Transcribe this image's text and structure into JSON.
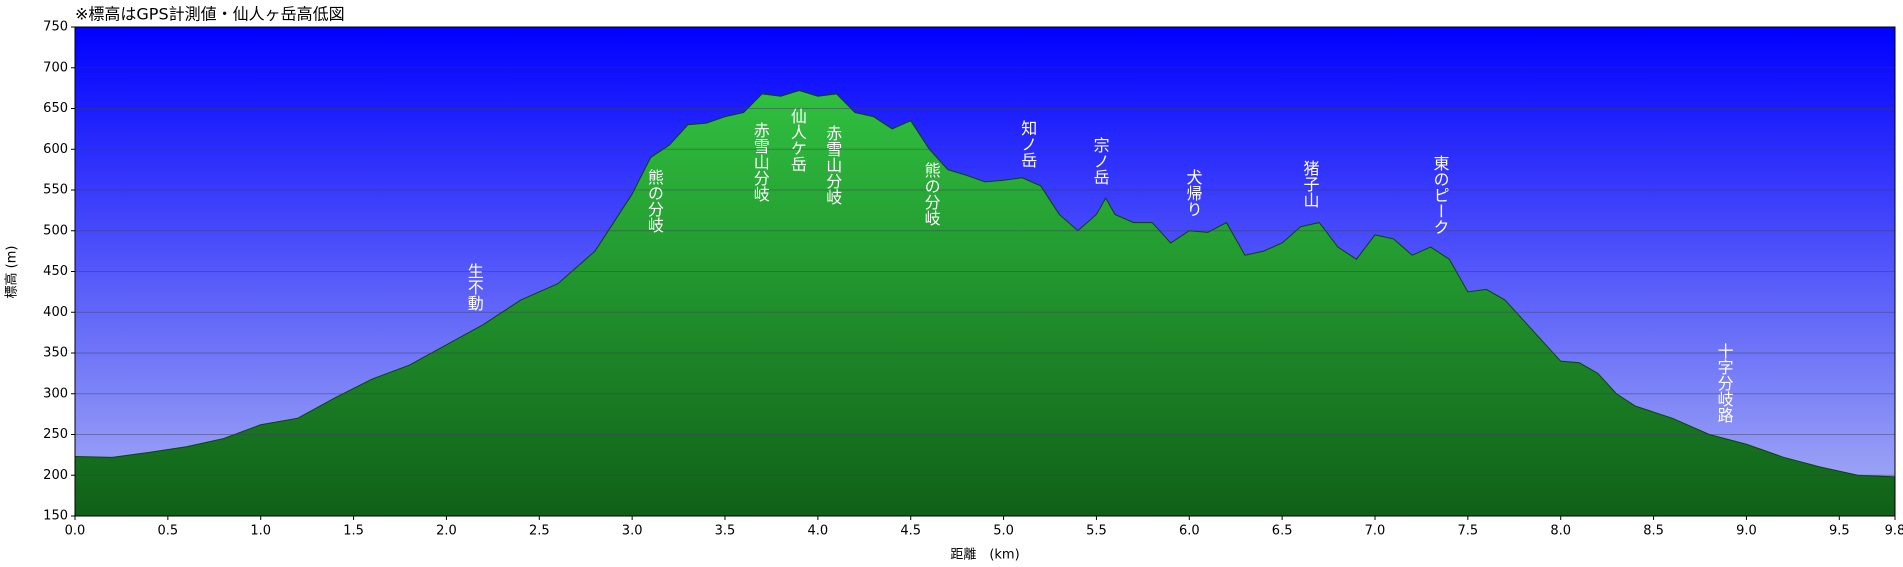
{
  "chart_data": {
    "type": "area",
    "title": "※標高はGPS計測値・仙人ヶ岳高低図",
    "x_label": "距離　(km)",
    "y_label": "標高 (m)",
    "color": "#22a030",
    "grid": true,
    "xlim": [
      0,
      9.8
    ],
    "ylim": [
      150,
      750
    ],
    "xticks": [
      {
        "value": 0,
        "label": "0.0"
      },
      0.5,
      {
        "value": 1,
        "label": "1.0"
      },
      1.5,
      {
        "value": 2,
        "label": "2.0"
      },
      2.5,
      {
        "value": 3,
        "label": "3.0"
      },
      3.5,
      {
        "value": 4,
        "label": "4.0"
      },
      4.5,
      {
        "value": 5,
        "label": "5.0"
      },
      5.5,
      {
        "value": 6,
        "label": "6.0"
      },
      6.5,
      {
        "value": 7,
        "label": "7.0"
      },
      7.5,
      {
        "value": 8,
        "label": "8.0"
      },
      8.5,
      {
        "value": 9,
        "label": "9.0"
      },
      9.5,
      9.8
    ],
    "yticks": [
      150,
      200,
      250,
      300,
      350,
      400,
      450,
      500,
      550,
      600,
      650,
      700,
      750
    ],
    "x": [
      0,
      0.2,
      0.4,
      0.6,
      0.8,
      1.0,
      1.2,
      1.4,
      1.6,
      1.8,
      2.0,
      2.2,
      2.4,
      2.6,
      2.8,
      3.0,
      3.1,
      3.2,
      3.3,
      3.4,
      3.5,
      3.6,
      3.7,
      3.8,
      3.9,
      4.0,
      4.1,
      4.2,
      4.3,
      4.4,
      4.5,
      4.6,
      4.7,
      4.8,
      4.9,
      5.0,
      5.1,
      5.2,
      5.3,
      5.4,
      5.5,
      5.55,
      5.6,
      5.7,
      5.8,
      5.9,
      6.0,
      6.1,
      6.2,
      6.3,
      6.4,
      6.5,
      6.6,
      6.7,
      6.8,
      6.9,
      7.0,
      7.1,
      7.2,
      7.3,
      7.4,
      7.5,
      7.6,
      7.7,
      7.8,
      7.9,
      8.0,
      8.1,
      8.2,
      8.3,
      8.4,
      8.6,
      8.8,
      9.0,
      9.2,
      9.4,
      9.6,
      9.8
    ],
    "values": [
      223,
      222,
      228,
      235,
      245,
      262,
      270,
      295,
      318,
      335,
      360,
      385,
      415,
      435,
      475,
      545,
      590,
      605,
      630,
      632,
      640,
      645,
      668,
      665,
      672,
      665,
      668,
      645,
      640,
      625,
      635,
      600,
      575,
      568,
      560,
      562,
      565,
      555,
      520,
      500,
      520,
      540,
      520,
      510,
      510,
      485,
      500,
      498,
      510,
      470,
      475,
      485,
      505,
      510,
      480,
      465,
      495,
      490,
      470,
      480,
      465,
      425,
      428,
      415,
      390,
      365,
      340,
      338,
      325,
      300,
      285,
      270,
      250,
      238,
      222,
      210,
      200,
      198
    ],
    "annotations": [
      {
        "text": "生不動",
        "x": 2.15
      },
      {
        "text": "熊の分岐",
        "x": 3.12
      },
      {
        "text": "赤雪山分岐",
        "x": 3.69
      },
      {
        "text": "仙人ケ岳",
        "x": 3.89
      },
      {
        "text": "赤雪山分岐",
        "x": 4.08
      },
      {
        "text": "熊の分岐",
        "x": 4.61
      },
      {
        "text": "知ノ岳",
        "x": 5.13
      },
      {
        "text": "宗ノ岳",
        "x": 5.52
      },
      {
        "text": "犬帰り",
        "x": 6.02
      },
      {
        "text": "猪子山",
        "x": 6.65
      },
      {
        "text": "東のピーク",
        "x": 7.35
      },
      {
        "text": "十字分岐路",
        "x": 8.88
      }
    ]
  }
}
